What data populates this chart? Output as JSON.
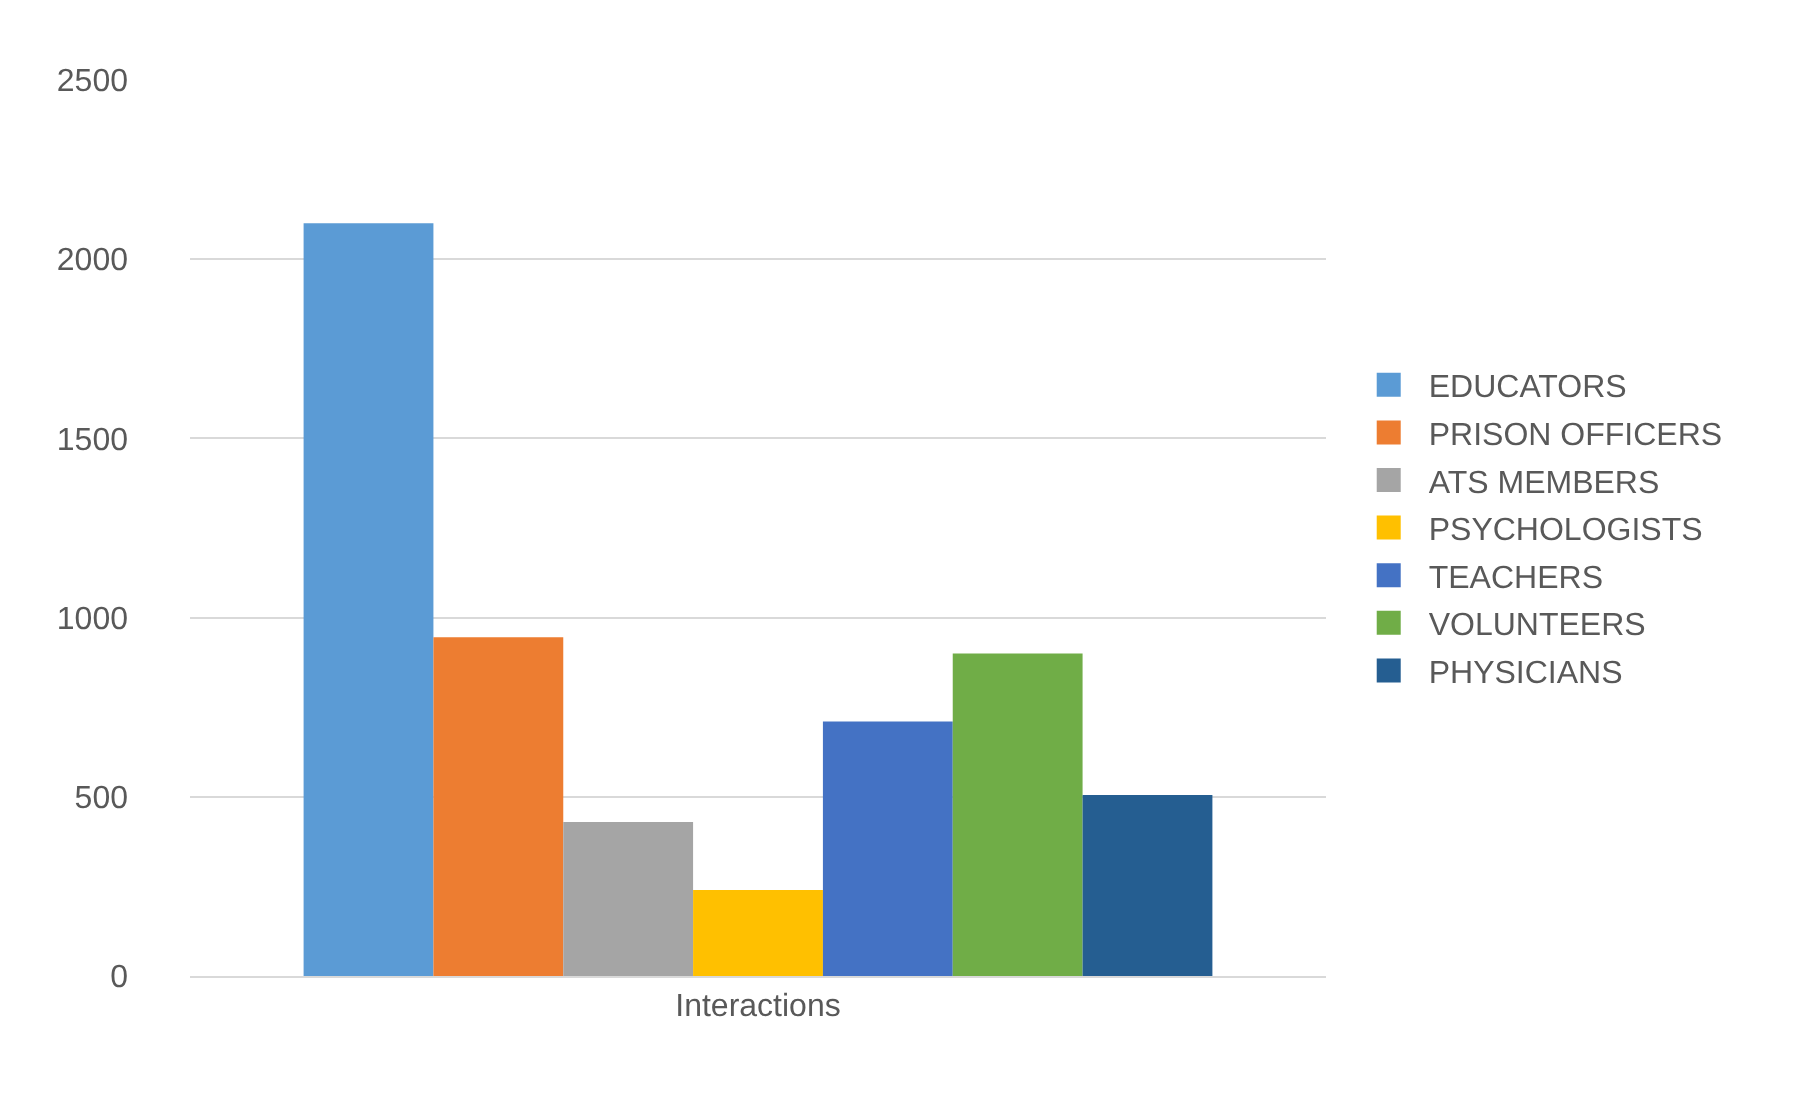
{
  "chart_data": {
    "type": "bar",
    "categories": [
      "Interactions"
    ],
    "series": [
      {
        "name": "EDUCATORS",
        "color": "#5b9bd5",
        "values": [
          2100
        ]
      },
      {
        "name": "PRISON OFFICERS",
        "color": "#ed7d31",
        "values": [
          945
        ]
      },
      {
        "name": "ATS MEMBERS",
        "color": "#a5a5a5",
        "values": [
          430
        ]
      },
      {
        "name": "PSYCHOLOGISTS",
        "color": "#ffc000",
        "values": [
          240
        ]
      },
      {
        "name": "TEACHERS",
        "color": "#4472c4",
        "values": [
          710
        ]
      },
      {
        "name": "VOLUNTEERS",
        "color": "#70ad47",
        "values": [
          900
        ]
      },
      {
        "name": "PHYSICIANS",
        "color": "#255e91",
        "values": [
          505
        ]
      }
    ],
    "ylim": [
      0,
      2500
    ],
    "yticks": [
      0,
      500,
      1000,
      1500,
      2000,
      2500
    ],
    "grid": "y",
    "legend": "right"
  }
}
